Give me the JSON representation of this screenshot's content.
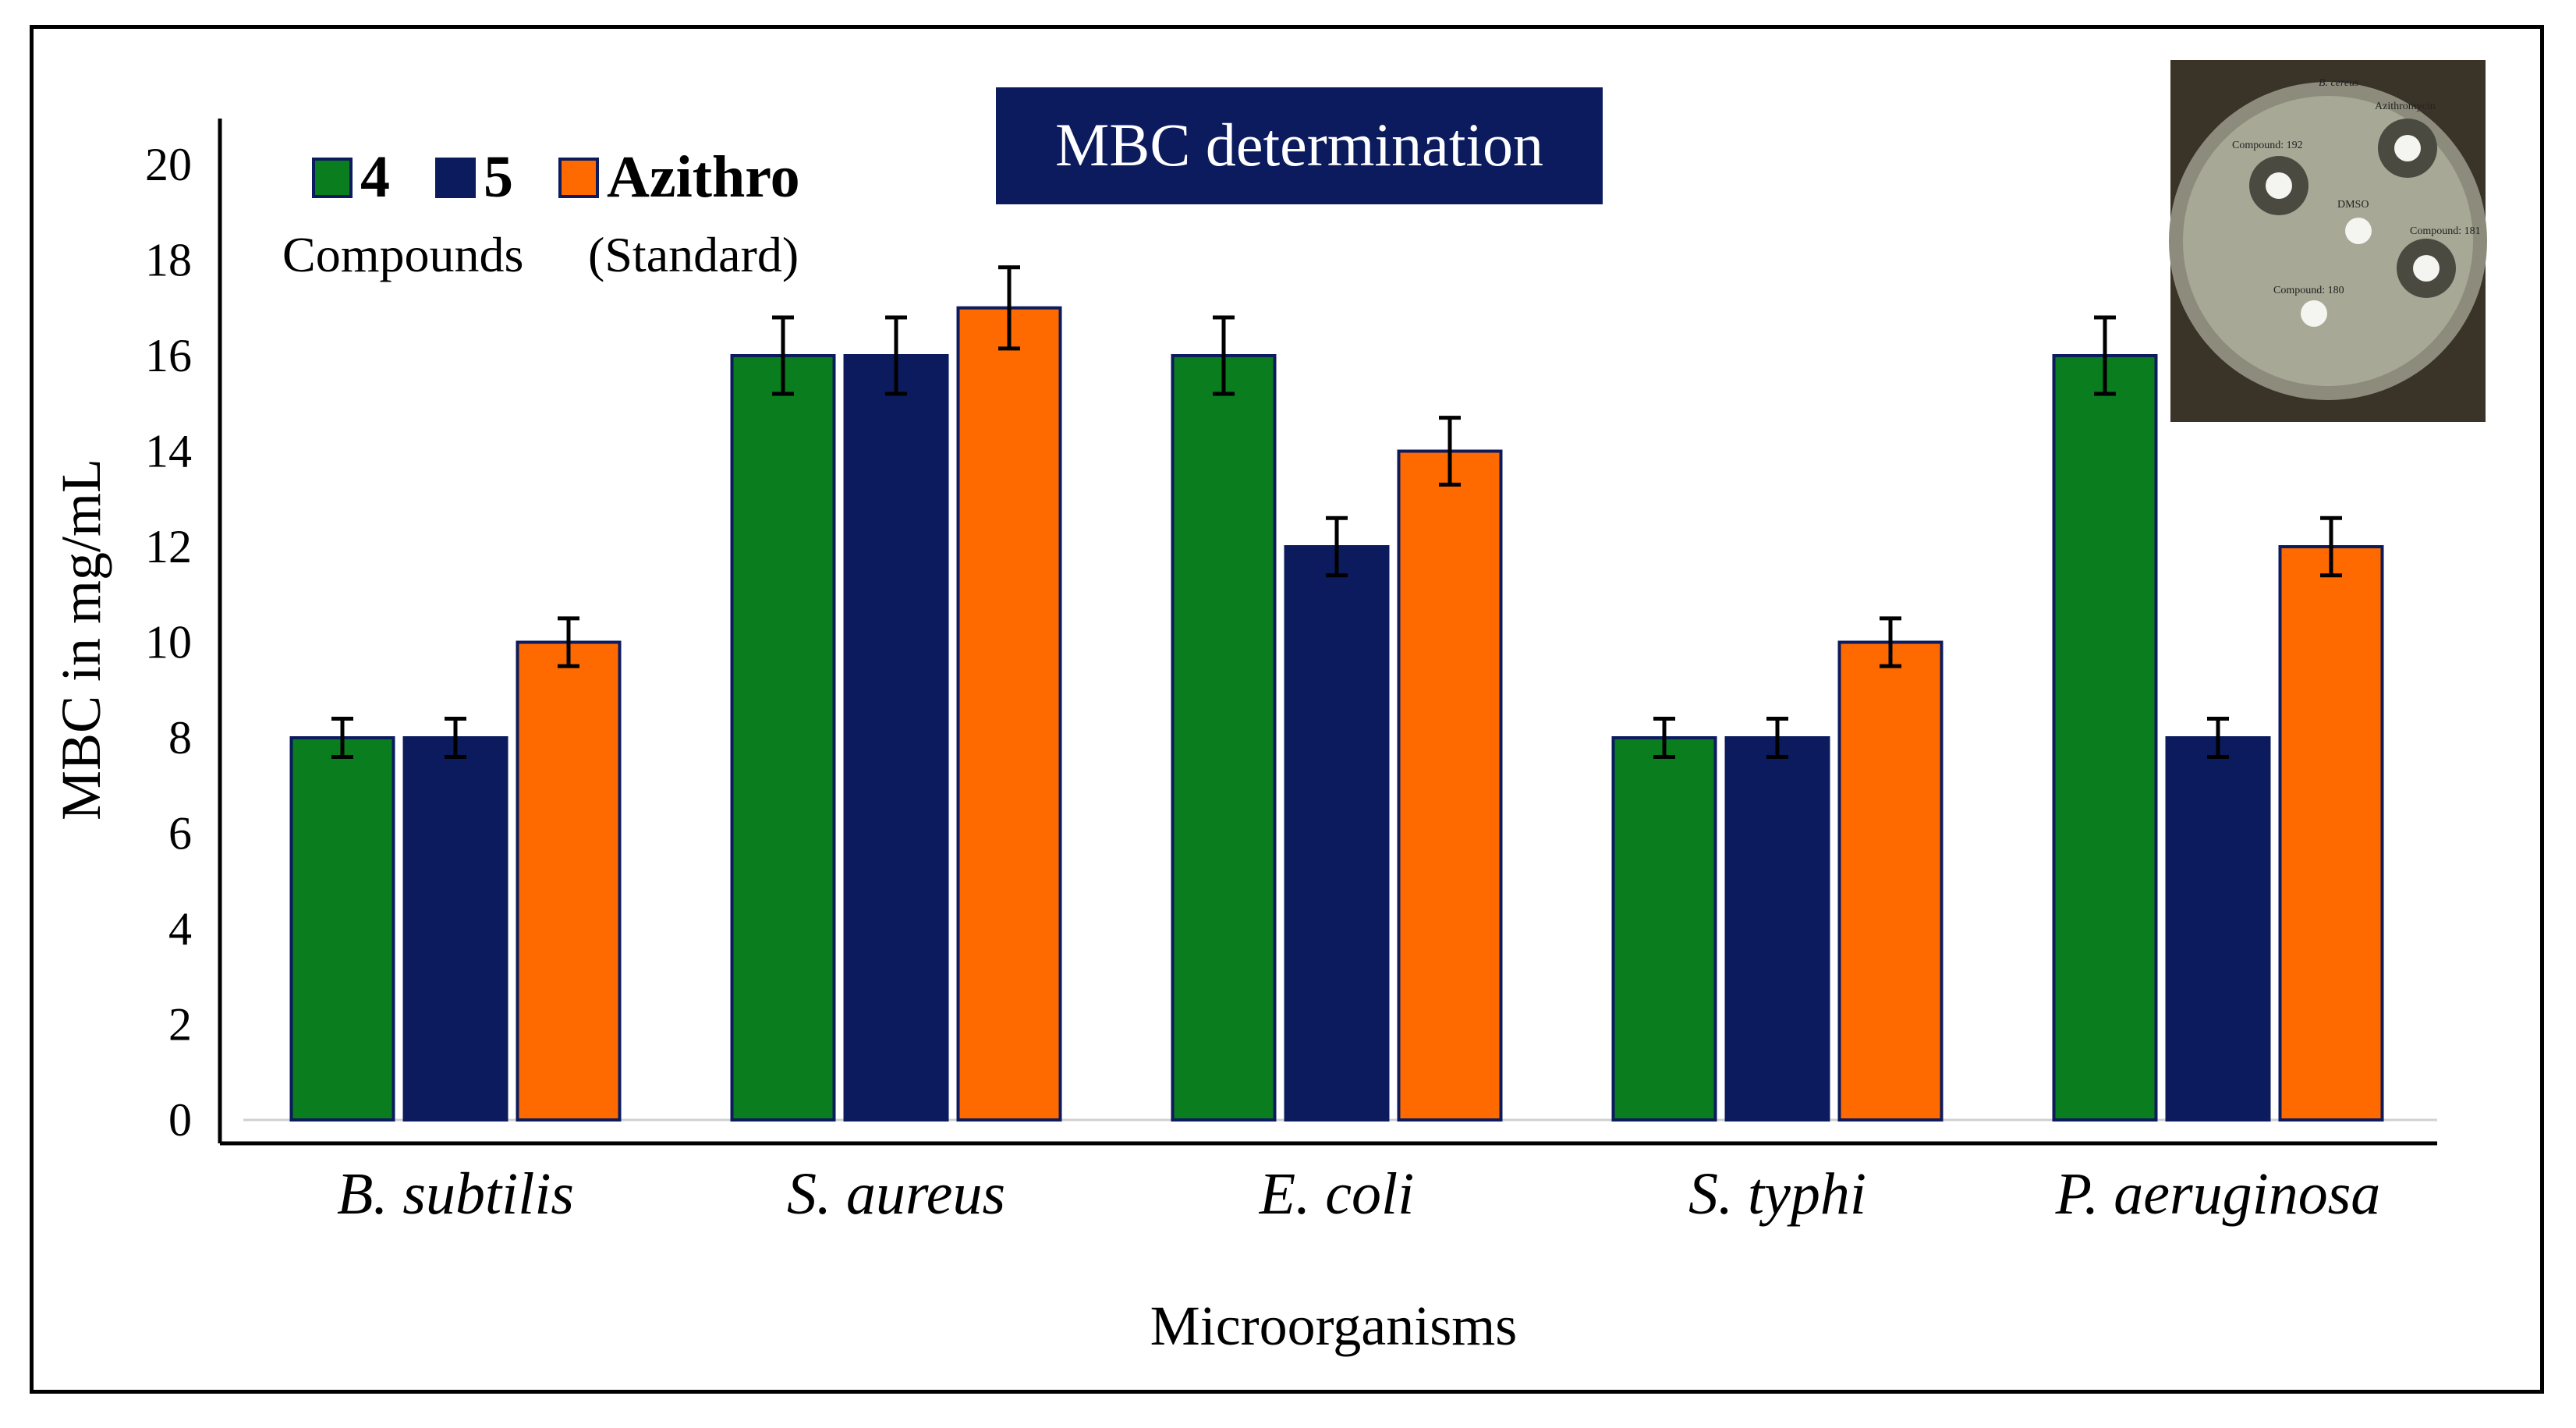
{
  "chart_data": {
    "type": "bar",
    "title": "MBC determination",
    "xlabel": "Microorganisms",
    "ylabel": "MBC in mg/mL",
    "ylim": [
      0,
      20
    ],
    "yticks": [
      "0",
      "2",
      "4",
      "6",
      "8",
      "10",
      "12",
      "14",
      "16",
      "18",
      "20"
    ],
    "categories": [
      "B. subtilis",
      "S. aureus",
      "E. coli",
      "S. typhi",
      "P. aeruginosa"
    ],
    "series": [
      {
        "name": "4",
        "color": "#0a7d1e",
        "values": [
          8,
          16,
          16,
          8,
          16
        ],
        "errors": [
          0.4,
          0.8,
          0.8,
          0.4,
          0.8
        ]
      },
      {
        "name": "5",
        "color": "#0b1b5e",
        "values": [
          8,
          16,
          12,
          8,
          8
        ],
        "errors": [
          0.4,
          0.8,
          0.6,
          0.4,
          0.4
        ]
      },
      {
        "name": "Azithro",
        "color": "#ff6a00",
        "values": [
          10,
          17,
          14,
          10,
          12
        ],
        "errors": [
          0.5,
          0.85,
          0.7,
          0.5,
          0.6
        ]
      }
    ],
    "legend_position": "top-left",
    "legend_subtitle_compounds": "Compounds",
    "legend_subtitle_standard": "(Standard)",
    "grid": false,
    "error_bars": true
  },
  "inset_image": {
    "description_labels": [
      "B. cereus",
      "Azithromycin",
      "Compound: 192",
      "DMSO",
      "Compound: 181",
      "Compound: 180"
    ]
  },
  "colors": {
    "title_bg": "#0b1b5e",
    "bar_border": "#0b1b5e"
  }
}
